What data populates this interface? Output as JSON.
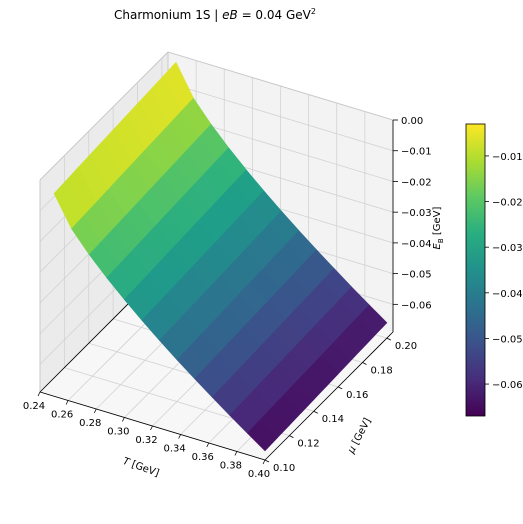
{
  "chart_data": {
    "type": "surface3d",
    "title": {
      "prefix": "Charmonium 1S  |  ",
      "var": "eB",
      "equals": " = 0.04 GeV",
      "sup": "2"
    },
    "xlabel": {
      "var": "T",
      "unit": " [GeV]"
    },
    "ylabel": {
      "var": "μ",
      "unit": " [GeV]"
    },
    "zlabel": {
      "var": "E",
      "sub": "B",
      "unit": " [GeV]"
    },
    "xlim": [
      0.24,
      0.4
    ],
    "ylim": [
      0.1,
      0.205
    ],
    "zlim": [
      -0.069,
      0.0
    ],
    "x_ticks": [
      "0.24",
      "0.26",
      "0.28",
      "0.30",
      "0.32",
      "0.34",
      "0.36",
      "0.38",
      "0.40"
    ],
    "y_ticks": [
      "0.10",
      "0.12",
      "0.14",
      "0.16",
      "0.18",
      "0.20"
    ],
    "z_ticks": [
      "0.00",
      "−0.01",
      "−0.02",
      "−0.03",
      "−0.04",
      "−0.05",
      "−0.06"
    ],
    "surface": {
      "x_range": [
        0.25,
        0.4
      ],
      "y_range": [
        0.1,
        0.2
      ],
      "z_at_corners": {
        "T0.25_mu0.10": -0.003,
        "T0.25_mu0.20": 0.0,
        "T0.40_mu0.10": -0.066,
        "T0.40_mu0.20": -0.064
      },
      "colormap": "viridis",
      "grid": [
        12,
        10
      ]
    },
    "colorbar": {
      "range": [
        -0.067,
        -0.003
      ],
      "ticks": [
        "−0.01",
        "−0.02",
        "−0.03",
        "−0.04",
        "−0.05",
        "−0.06"
      ],
      "tick_values": [
        -0.01,
        -0.02,
        -0.03,
        -0.04,
        -0.05,
        -0.06
      ],
      "placement": "right"
    },
    "grid": true
  }
}
